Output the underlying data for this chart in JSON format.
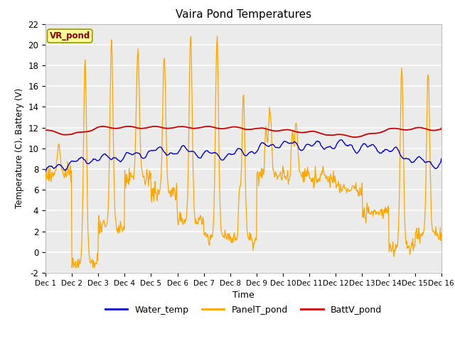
{
  "title": "Vaira Pond Temperatures",
  "xlabel": "Time",
  "ylabel": "Temperature (C), Battery (V)",
  "ylim": [
    -2,
    22
  ],
  "xlim": [
    0,
    15
  ],
  "xtick_labels": [
    "Dec 1",
    "Dec 2",
    "Dec 3",
    "Dec 4",
    "Dec 5",
    "Dec 6",
    "Dec 7",
    "Dec 8",
    "Dec 9",
    "Dec 10",
    "Dec 11",
    "Dec 12",
    "Dec 13",
    "Dec 14",
    "Dec 15",
    "Dec 16"
  ],
  "ytick_values": [
    -2,
    0,
    2,
    4,
    6,
    8,
    10,
    12,
    14,
    16,
    18,
    20,
    22
  ],
  "site_label": "VR_pond",
  "site_label_color": "#8B0000",
  "site_label_bg": "#FFFF99",
  "water_temp_color": "#0000CC",
  "panel_temp_color": "#FFA500",
  "batt_color": "#CC0000",
  "bg_color": "#EBEBEB",
  "legend_labels": [
    "Water_temp",
    "PanelT_pond",
    "BattV_pond"
  ],
  "n_points": 720,
  "panel_peaks": [
    10.5,
    18.5,
    20.7,
    19.5,
    18.8,
    21.0,
    20.8,
    15.2,
    14.0,
    12.5,
    8.0,
    6.0,
    4.0,
    18.0,
    17.5,
    17.5
  ],
  "panel_nights": [
    7.5,
    -1.0,
    2.3,
    7.2,
    5.7,
    3.0,
    1.5,
    1.2,
    7.5,
    7.5,
    7.0,
    6.2,
    3.8,
    0.5,
    1.8,
    2.0
  ],
  "batt_base": [
    11.7,
    11.3,
    12.0,
    12.0,
    12.0,
    12.0,
    12.0,
    11.9,
    11.8,
    11.7,
    11.5,
    11.2,
    11.1,
    11.8,
    11.9,
    11.8
  ],
  "water_base": [
    7.8,
    8.5,
    8.8,
    9.0,
    9.5,
    9.5,
    9.2,
    9.0,
    9.2,
    9.5,
    9.5,
    9.5,
    9.5,
    9.3,
    8.8,
    8.5
  ]
}
